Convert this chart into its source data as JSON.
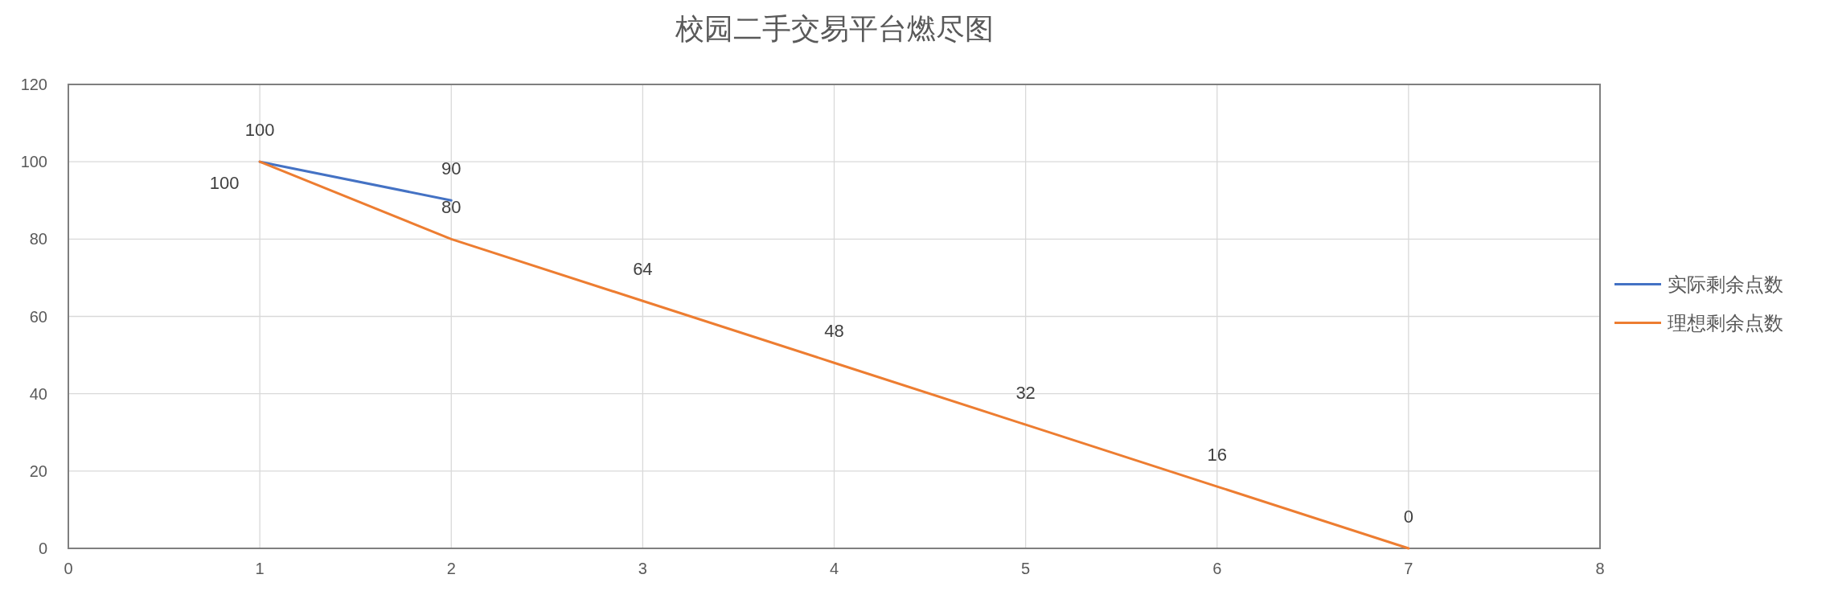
{
  "chart_data": {
    "type": "line",
    "title": "校园二手交易平台燃尽图",
    "series": [
      {
        "name": "实际剩余点数",
        "color": "#4472c4",
        "x": [
          1,
          2
        ],
        "values": [
          100,
          90
        ]
      },
      {
        "name": "理想剩余点数",
        "color": "#ed7d31",
        "x": [
          1,
          2,
          3,
          4,
          5,
          6,
          7
        ],
        "values": [
          100,
          80,
          64,
          48,
          32,
          16,
          0
        ]
      }
    ],
    "xlim": [
      0,
      8
    ],
    "xticks": [
      0,
      1,
      2,
      3,
      4,
      5,
      6,
      7,
      8
    ],
    "ylim": [
      0,
      120
    ],
    "yticks": [
      0,
      20,
      40,
      60,
      80,
      100,
      120
    ],
    "grid": true,
    "legend": "right",
    "data_labels": true,
    "marker": "none",
    "line_style": "solid"
  }
}
